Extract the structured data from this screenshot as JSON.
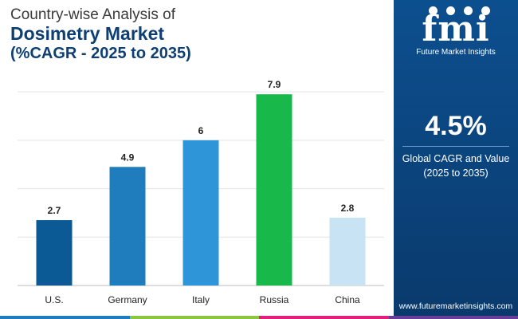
{
  "header": {
    "line1": "Country-wise Analysis of",
    "line2": "Dosimetry Market",
    "line3": "(%CAGR - 2025 to 2035)"
  },
  "chart_data": {
    "type": "bar",
    "categories": [
      "U.S.",
      "Germany",
      "Italy",
      "Russia",
      "China"
    ],
    "values": [
      2.7,
      4.9,
      6,
      7.9,
      2.8
    ],
    "value_labels": [
      "2.7",
      "4.9",
      "6",
      "7.9",
      "2.8"
    ],
    "bar_colors": [
      "#0b5a96",
      "#1f7cbd",
      "#2e95d8",
      "#18b84a",
      "#c7e3f4"
    ],
    "ylim": [
      0,
      8.5
    ],
    "grid": true,
    "legend": "none"
  },
  "sidebar": {
    "logo_mark": "fmi",
    "logo_text": "Future Market Insights",
    "cagr_value": "4.5%",
    "cagr_label_line1": "Global CAGR and Value",
    "cagr_label_line2": "(2025 to 2035)",
    "website": "www.futuremarketinsights.com",
    "background_color": "#0c4f8f"
  },
  "footer_stripe_colors": [
    "#1f7cbd",
    "#8cc63f",
    "#e0207a",
    "#6a3d9a"
  ]
}
